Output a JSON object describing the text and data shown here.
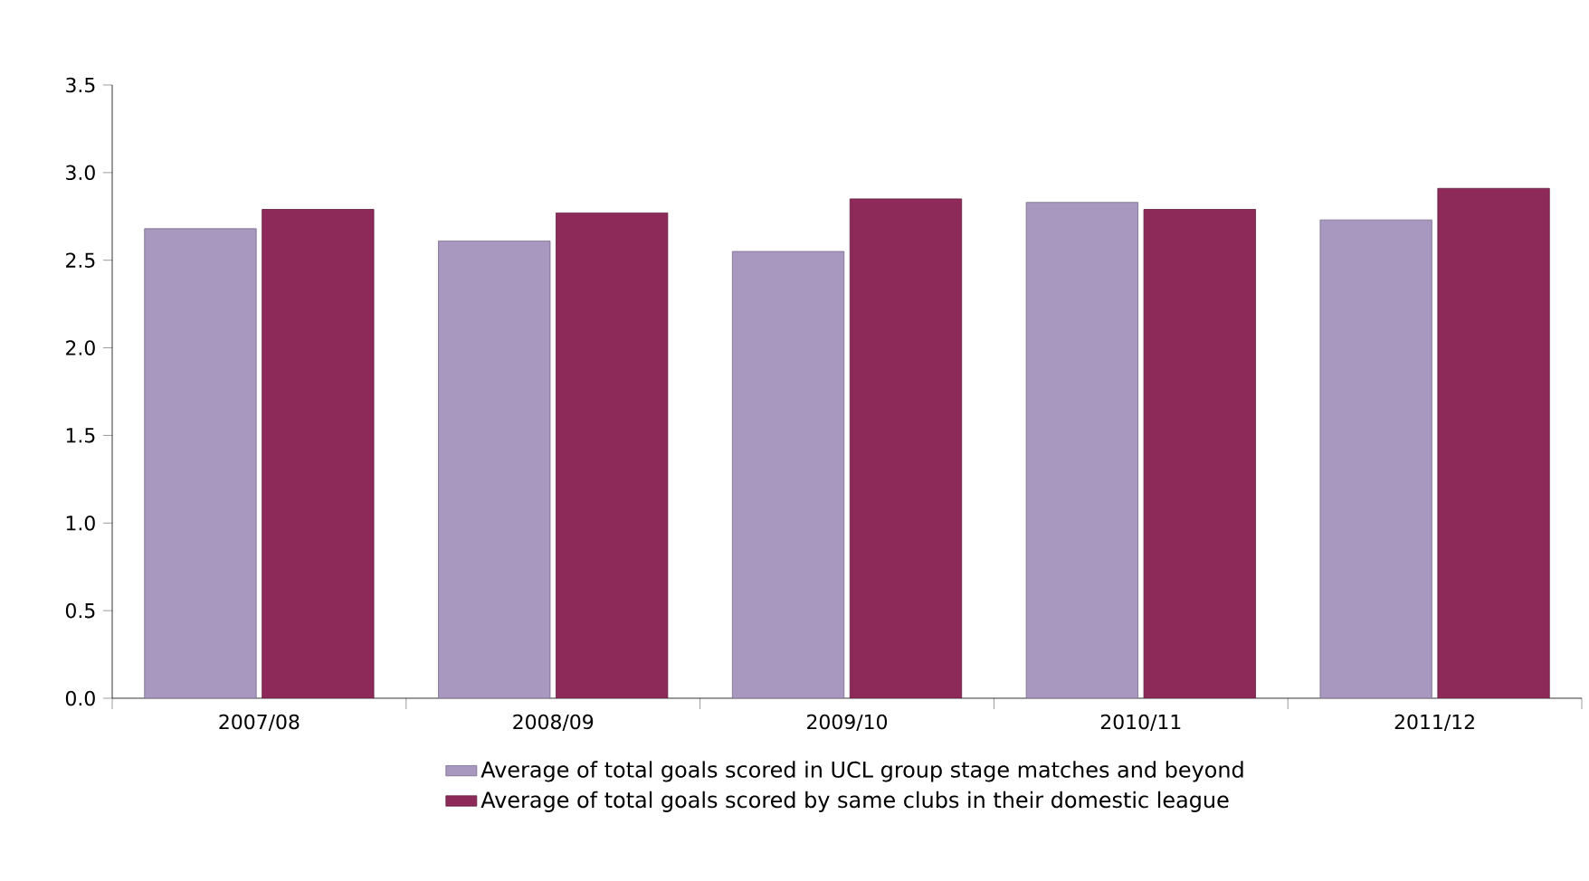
{
  "chart_data": {
    "type": "bar",
    "categories": [
      "2007/08",
      "2008/09",
      "2009/10",
      "2010/11",
      "2011/12"
    ],
    "series": [
      {
        "name": "Average of total goals scored in UCL group stage matches and beyond",
        "color": "#a898c0",
        "values": [
          2.68,
          2.61,
          2.55,
          2.83,
          2.73
        ]
      },
      {
        "name": "Average of total goals scored by same clubs in their domestic league",
        "color": "#8e2a5a",
        "values": [
          2.79,
          2.77,
          2.85,
          2.79,
          2.91
        ]
      }
    ],
    "ylim": [
      0,
      3.5
    ],
    "yticks": [
      {
        "value": 0,
        "label": "0.0"
      },
      0.5,
      {
        "value": 1,
        "label": "1.0"
      },
      1.5,
      {
        "value": 2,
        "label": "2.0"
      },
      2.5,
      {
        "value": 3,
        "label": "3.0"
      },
      3.5
    ],
    "grid": false,
    "legend": "bottom"
  }
}
